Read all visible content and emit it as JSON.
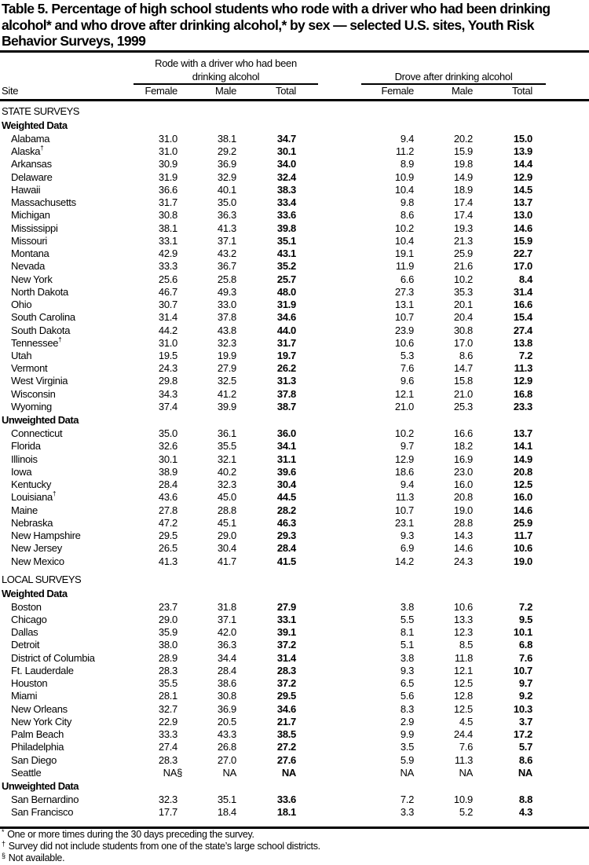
{
  "title": "Table 5. Percentage of high school students who rode with a driver who had been drinking alcohol* and who drove after drinking alcohol,* by sex — selected U.S. sites, Youth Risk Behavior Surveys, 1999",
  "header": {
    "group1_line1": "Rode with a driver who had been",
    "group1_line2": "drinking alcohol",
    "group2": "Drove after drinking alcohol",
    "site": "Site",
    "columns": [
      "Female",
      "Male",
      "Total",
      "Female",
      "Male",
      "Total"
    ]
  },
  "sections": [
    {
      "label": "STATE SURVEYS",
      "groups": [
        {
          "label": "Weighted Data",
          "rows": [
            {
              "site": "Alabama",
              "sup": "",
              "values": [
                "31.0",
                "38.1",
                "34.7",
                "9.4",
                "20.2",
                "15.0"
              ]
            },
            {
              "site": "Alaska",
              "sup": "†",
              "values": [
                "31.0",
                "29.2",
                "30.1",
                "11.2",
                "15.9",
                "13.9"
              ]
            },
            {
              "site": "Arkansas",
              "sup": "",
              "values": [
                "30.9",
                "36.9",
                "34.0",
                "8.9",
                "19.8",
                "14.4"
              ]
            },
            {
              "site": "Delaware",
              "sup": "",
              "values": [
                "31.9",
                "32.9",
                "32.4",
                "10.9",
                "14.9",
                "12.9"
              ]
            },
            {
              "site": "Hawaii",
              "sup": "",
              "values": [
                "36.6",
                "40.1",
                "38.3",
                "10.4",
                "18.9",
                "14.5"
              ]
            },
            {
              "site": "Massachusetts",
              "sup": "",
              "values": [
                "31.7",
                "35.0",
                "33.4",
                "9.8",
                "17.4",
                "13.7"
              ]
            },
            {
              "site": "Michigan",
              "sup": "",
              "values": [
                "30.8",
                "36.3",
                "33.6",
                "8.6",
                "17.4",
                "13.0"
              ]
            },
            {
              "site": "Mississippi",
              "sup": "",
              "values": [
                "38.1",
                "41.3",
                "39.8",
                "10.2",
                "19.3",
                "14.6"
              ]
            },
            {
              "site": "Missouri",
              "sup": "",
              "values": [
                "33.1",
                "37.1",
                "35.1",
                "10.4",
                "21.3",
                "15.9"
              ]
            },
            {
              "site": "Montana",
              "sup": "",
              "values": [
                "42.9",
                "43.2",
                "43.1",
                "19.1",
                "25.9",
                "22.7"
              ]
            },
            {
              "site": "Nevada",
              "sup": "",
              "values": [
                "33.3",
                "36.7",
                "35.2",
                "11.9",
                "21.6",
                "17.0"
              ]
            },
            {
              "site": "New York",
              "sup": "",
              "values": [
                "25.6",
                "25.8",
                "25.7",
                "6.6",
                "10.2",
                "8.4"
              ]
            },
            {
              "site": "North Dakota",
              "sup": "",
              "values": [
                "46.7",
                "49.3",
                "48.0",
                "27.3",
                "35.3",
                "31.4"
              ]
            },
            {
              "site": "Ohio",
              "sup": "",
              "values": [
                "30.7",
                "33.0",
                "31.9",
                "13.1",
                "20.1",
                "16.6"
              ]
            },
            {
              "site": "South Carolina",
              "sup": "",
              "values": [
                "31.4",
                "37.8",
                "34.6",
                "10.7",
                "20.4",
                "15.4"
              ]
            },
            {
              "site": "South Dakota",
              "sup": "",
              "values": [
                "44.2",
                "43.8",
                "44.0",
                "23.9",
                "30.8",
                "27.4"
              ]
            },
            {
              "site": "Tennessee",
              "sup": "†",
              "values": [
                "31.0",
                "32.3",
                "31.7",
                "10.6",
                "17.0",
                "13.8"
              ]
            },
            {
              "site": "Utah",
              "sup": "",
              "values": [
                "19.5",
                "19.9",
                "19.7",
                "5.3",
                "8.6",
                "7.2"
              ]
            },
            {
              "site": "Vermont",
              "sup": "",
              "values": [
                "24.3",
                "27.9",
                "26.2",
                "7.6",
                "14.7",
                "11.3"
              ]
            },
            {
              "site": "West Virginia",
              "sup": "",
              "values": [
                "29.8",
                "32.5",
                "31.3",
                "9.6",
                "15.8",
                "12.9"
              ]
            },
            {
              "site": "Wisconsin",
              "sup": "",
              "values": [
                "34.3",
                "41.2",
                "37.8",
                "12.1",
                "21.0",
                "16.8"
              ]
            },
            {
              "site": "Wyoming",
              "sup": "",
              "values": [
                "37.4",
                "39.9",
                "38.7",
                "21.0",
                "25.3",
                "23.3"
              ]
            }
          ]
        },
        {
          "label": "Unweighted Data",
          "rows": [
            {
              "site": "Connecticut",
              "sup": "",
              "values": [
                "35.0",
                "36.1",
                "36.0",
                "10.2",
                "16.6",
                "13.7"
              ]
            },
            {
              "site": "Florida",
              "sup": "",
              "values": [
                "32.6",
                "35.5",
                "34.1",
                "9.7",
                "18.2",
                "14.1"
              ]
            },
            {
              "site": "Illinois",
              "sup": "",
              "values": [
                "30.1",
                "32.1",
                "31.1",
                "12.9",
                "16.9",
                "14.9"
              ]
            },
            {
              "site": "Iowa",
              "sup": "",
              "values": [
                "38.9",
                "40.2",
                "39.6",
                "18.6",
                "23.0",
                "20.8"
              ]
            },
            {
              "site": "Kentucky",
              "sup": "",
              "values": [
                "28.4",
                "32.3",
                "30.4",
                "9.4",
                "16.0",
                "12.5"
              ]
            },
            {
              "site": "Louisiana",
              "sup": "†",
              "values": [
                "43.6",
                "45.0",
                "44.5",
                "11.3",
                "20.8",
                "16.0"
              ]
            },
            {
              "site": "Maine",
              "sup": "",
              "values": [
                "27.8",
                "28.8",
                "28.2",
                "10.7",
                "19.0",
                "14.6"
              ]
            },
            {
              "site": "Nebraska",
              "sup": "",
              "values": [
                "47.2",
                "45.1",
                "46.3",
                "23.1",
                "28.8",
                "25.9"
              ]
            },
            {
              "site": "New Hampshire",
              "sup": "",
              "values": [
                "29.5",
                "29.0",
                "29.3",
                "9.3",
                "14.3",
                "11.7"
              ]
            },
            {
              "site": "New Jersey",
              "sup": "",
              "values": [
                "26.5",
                "30.4",
                "28.4",
                "6.9",
                "14.6",
                "10.6"
              ]
            },
            {
              "site": "New Mexico",
              "sup": "",
              "values": [
                "41.3",
                "41.7",
                "41.5",
                "14.2",
                "24.3",
                "19.0"
              ]
            }
          ]
        }
      ]
    },
    {
      "label": "LOCAL SURVEYS",
      "groups": [
        {
          "label": "Weighted Data",
          "rows": [
            {
              "site": "Boston",
              "sup": "",
              "values": [
                "23.7",
                "31.8",
                "27.9",
                "3.8",
                "10.6",
                "7.2"
              ]
            },
            {
              "site": "Chicago",
              "sup": "",
              "values": [
                "29.0",
                "37.1",
                "33.1",
                "5.5",
                "13.3",
                "9.5"
              ]
            },
            {
              "site": "Dallas",
              "sup": "",
              "values": [
                "35.9",
                "42.0",
                "39.1",
                "8.1",
                "12.3",
                "10.1"
              ]
            },
            {
              "site": "Detroit",
              "sup": "",
              "values": [
                "38.0",
                "36.3",
                "37.2",
                "5.1",
                "8.5",
                "6.8"
              ]
            },
            {
              "site": "District of Columbia",
              "sup": "",
              "values": [
                "28.9",
                "34.4",
                "31.4",
                "3.8",
                "11.8",
                "7.6"
              ]
            },
            {
              "site": "Ft. Lauderdale",
              "sup": "",
              "values": [
                "28.3",
                "28.4",
                "28.3",
                "9.3",
                "12.1",
                "10.7"
              ]
            },
            {
              "site": "Houston",
              "sup": "",
              "values": [
                "35.5",
                "38.6",
                "37.2",
                "6.5",
                "12.5",
                "9.7"
              ]
            },
            {
              "site": "Miami",
              "sup": "",
              "values": [
                "28.1",
                "30.8",
                "29.5",
                "5.6",
                "12.8",
                "9.2"
              ]
            },
            {
              "site": "New Orleans",
              "sup": "",
              "values": [
                "32.7",
                "36.9",
                "34.6",
                "8.3",
                "12.5",
                "10.3"
              ]
            },
            {
              "site": "New York City",
              "sup": "",
              "values": [
                "22.9",
                "20.5",
                "21.7",
                "2.9",
                "4.5",
                "3.7"
              ]
            },
            {
              "site": "Palm Beach",
              "sup": "",
              "values": [
                "33.3",
                "43.3",
                "38.5",
                "9.9",
                "24.4",
                "17.2"
              ]
            },
            {
              "site": "Philadelphia",
              "sup": "",
              "values": [
                "27.4",
                "26.8",
                "27.2",
                "3.5",
                "7.6",
                "5.7"
              ]
            },
            {
              "site": "San Diego",
              "sup": "",
              "values": [
                "28.3",
                "27.0",
                "27.6",
                "5.9",
                "11.3",
                "8.6"
              ]
            },
            {
              "site": "Seattle",
              "sup": "",
              "values": [
                "NA§",
                "NA",
                "NA",
                "NA",
                "NA",
                "NA"
              ]
            }
          ]
        },
        {
          "label": "Unweighted Data",
          "rows": [
            {
              "site": "San Bernardino",
              "sup": "",
              "values": [
                "32.3",
                "35.1",
                "33.6",
                "7.2",
                "10.9",
                "8.8"
              ]
            },
            {
              "site": "San Francisco",
              "sup": "",
              "values": [
                "17.7",
                "18.4",
                "18.1",
                "3.3",
                "5.2",
                "4.3"
              ]
            }
          ]
        }
      ]
    }
  ],
  "footnotes": [
    {
      "mark": "*",
      "text": "One or more times during the 30 days preceding the survey."
    },
    {
      "mark": "†",
      "text": "Survey did not include students from one of the state’s large school districts."
    },
    {
      "mark": "§",
      "text": "Not available."
    }
  ]
}
